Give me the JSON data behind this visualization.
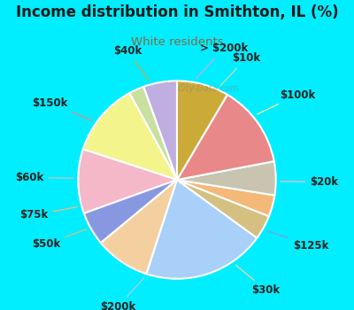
{
  "title": "Income distribution in Smithton, IL (%)",
  "subtitle": "White residents",
  "title_color": "#1a1a1a",
  "subtitle_color": "#886644",
  "bg_cyan": "#00eeff",
  "bg_chart": "#e0f0e8",
  "watermark": "City-Data.com",
  "labels": [
    "> $200k",
    "$10k",
    "$100k",
    "$20k",
    "$125k",
    "$30k",
    "$200k",
    "$50k",
    "$75k",
    "$60k",
    "$150k",
    "$40k"
  ],
  "values": [
    5.5,
    2.5,
    12.0,
    10.5,
    5.5,
    9.0,
    20.0,
    4.0,
    3.5,
    5.5,
    13.5,
    8.5
  ],
  "colors": [
    "#c0aee0",
    "#c8e0a0",
    "#f4f48c",
    "#f4b8c8",
    "#8898e0",
    "#f4d0a0",
    "#a8d0f8",
    "#d4c080",
    "#f4b878",
    "#c8c4b0",
    "#e88888",
    "#ccaa38"
  ],
  "label_fontsize": 8.5,
  "figsize": [
    4.0,
    3.5
  ],
  "dpi": 100
}
